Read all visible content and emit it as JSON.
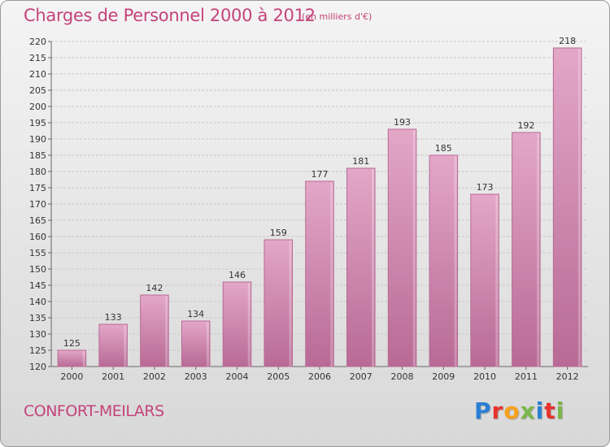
{
  "header": {
    "title": "Charges de Personnel 2000 à 2012",
    "subtitle": "(en milliers d'€)"
  },
  "footer": {
    "commune": "CONFORT-MEILARS",
    "logo_text": "Proxiti",
    "logo_colors": [
      "#2a7fd4",
      "#e8322b",
      "#f7a11a",
      "#7ab648",
      "#2a7fd4",
      "#e8322b",
      "#7ab648"
    ]
  },
  "chart_data": {
    "type": "bar",
    "title": "Charges de Personnel 2000 à 2012",
    "subtitle": "(en milliers d'€)",
    "xlabel": "",
    "ylabel": "",
    "categories": [
      "2000",
      "2001",
      "2002",
      "2003",
      "2004",
      "2005",
      "2006",
      "2007",
      "2008",
      "2009",
      "2010",
      "2011",
      "2012"
    ],
    "values": [
      125,
      133,
      142,
      134,
      146,
      159,
      177,
      181,
      193,
      185,
      173,
      192,
      218
    ],
    "ylim": [
      120,
      220
    ],
    "yticks": [
      120,
      125,
      130,
      135,
      140,
      145,
      150,
      155,
      160,
      165,
      170,
      175,
      180,
      185,
      190,
      195,
      200,
      205,
      210,
      215,
      220
    ],
    "grid": true,
    "bar_color": "#d889b4",
    "bar_edge_color": "#b86a95"
  }
}
